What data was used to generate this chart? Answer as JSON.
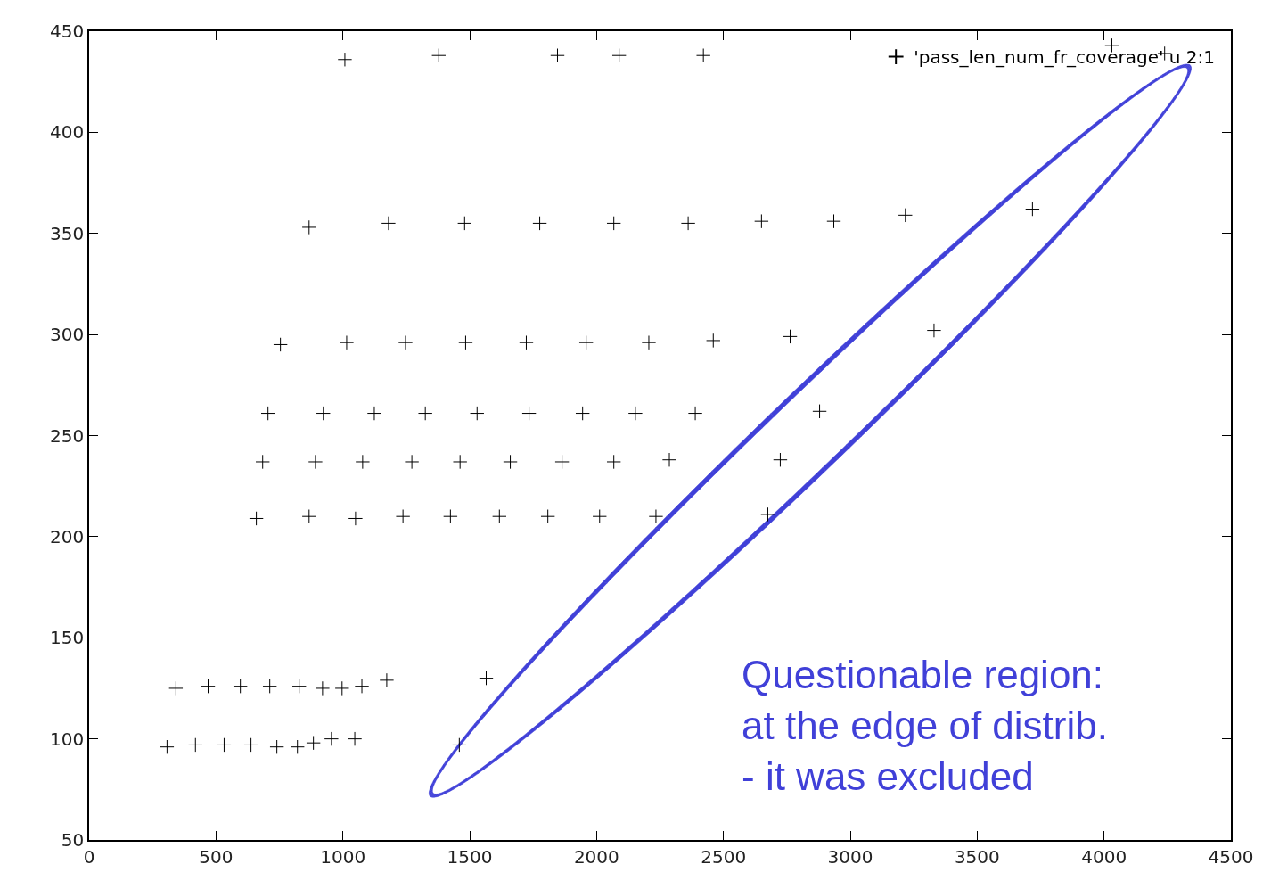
{
  "chart_data": {
    "type": "scatter",
    "marker": "cross",
    "legend": "top right",
    "xlim": [
      0,
      4500
    ],
    "xticks": [
      0,
      500,
      1000,
      1500,
      2000,
      2500,
      3000,
      3500,
      4000,
      4500
    ],
    "ylim": [
      50,
      450
    ],
    "yticks": [
      50,
      100,
      150,
      200,
      250,
      300,
      350,
      400,
      450
    ],
    "annotations": [
      "Questionable region:\nat the edge of distrib.\n- it was excluded"
    ],
    "series": [
      {
        "name": "'pass_len_num_fr_coverage' u 2:1",
        "color": "#000000",
        "x": [
          1008,
          1378,
          1846,
          2089,
          2421,
          4031,
          4239,
          867,
          1180,
          1480,
          1776,
          2068,
          2361,
          2650,
          2935,
          3217,
          3718,
          754,
          1015,
          1247,
          1484,
          1723,
          1959,
          2206,
          2460,
          2763,
          3330,
          705,
          923,
          1124,
          1325,
          1529,
          1734,
          1945,
          2153,
          2389,
          2879,
          684,
          892,
          1078,
          1272,
          1462,
          1660,
          1864,
          2068,
          2287,
          2724,
          659,
          867,
          1050,
          1237,
          1424,
          1617,
          1808,
          2012,
          2234,
          2675,
          342,
          469,
          596,
          712,
          828,
          920,
          997,
          1075,
          1173,
          1565,
          307,
          419,
          532,
          638,
          740,
          821,
          884,
          955,
          1047,
          1459
        ],
        "values": [
          436,
          438,
          438,
          438,
          438,
          443,
          439,
          353,
          355,
          355,
          355,
          355,
          355,
          356,
          356,
          359,
          362,
          295,
          296,
          296,
          296,
          296,
          296,
          296,
          297,
          299,
          302,
          261,
          261,
          261,
          261,
          261,
          261,
          261,
          261,
          261,
          262,
          237,
          237,
          237,
          237,
          237,
          237,
          237,
          237,
          238,
          238,
          209,
          210,
          209,
          210,
          210,
          210,
          210,
          210,
          210,
          211,
          125,
          126,
          126,
          126,
          126,
          125,
          125,
          126,
          129,
          130,
          96,
          97,
          97,
          97,
          96,
          96,
          98,
          100,
          100,
          97
        ]
      }
    ]
  }
}
